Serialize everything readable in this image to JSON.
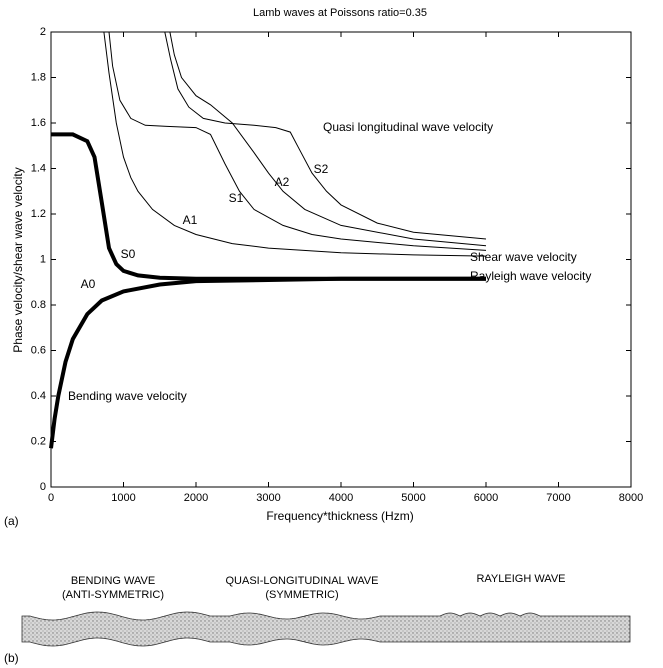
{
  "chart_data": {
    "type": "line",
    "title": "Lamb waves at Poissons ratio=0.35",
    "xlabel": "Frequency*thickness (Hzm)",
    "ylabel": "Phase velocity/shear wave velocity",
    "panel_label": "(a)",
    "xlim": [
      0,
      8000
    ],
    "xticks": [
      0,
      1000,
      2000,
      3000,
      4000,
      5000,
      6000,
      7000,
      8000
    ],
    "ylim": [
      0,
      2
    ],
    "yticks": [
      0,
      0.2,
      0.4,
      0.6,
      0.8,
      1,
      1.2,
      1.4,
      1.6,
      1.8,
      2
    ],
    "series": [
      {
        "name": "A0",
        "color": "#000000",
        "x": [
          0,
          50,
          100,
          200,
          300,
          500,
          700,
          1000,
          1500,
          2000,
          3000,
          4000,
          6000
        ],
        "values": [
          0.17,
          0.3,
          0.4,
          0.55,
          0.65,
          0.76,
          0.82,
          0.86,
          0.89,
          0.905,
          0.91,
          0.915,
          0.915
        ]
      },
      {
        "name": "S0",
        "color": "#000000",
        "x": [
          0,
          300,
          500,
          600,
          700,
          800,
          900,
          1000,
          1200,
          1500,
          2000,
          3000,
          6000
        ],
        "values": [
          1.55,
          1.55,
          1.52,
          1.45,
          1.25,
          1.05,
          0.98,
          0.95,
          0.93,
          0.92,
          0.915,
          0.915,
          0.915
        ]
      },
      {
        "name": "A1",
        "color": "#000000",
        "x": [
          730,
          800,
          900,
          1000,
          1100,
          1200,
          1400,
          1700,
          2000,
          2500,
          3000,
          4000,
          5000,
          6000
        ],
        "values": [
          2,
          1.82,
          1.6,
          1.45,
          1.36,
          1.3,
          1.22,
          1.15,
          1.11,
          1.07,
          1.05,
          1.03,
          1.02,
          1.015
        ]
      },
      {
        "name": "S1",
        "color": "#000000",
        "x": [
          800,
          850,
          950,
          1100,
          1300,
          1600,
          2000,
          2200,
          2400,
          2600,
          2800,
          3200,
          3600,
          4000,
          5000,
          6000
        ],
        "values": [
          2,
          1.85,
          1.7,
          1.62,
          1.59,
          1.585,
          1.58,
          1.55,
          1.42,
          1.3,
          1.22,
          1.15,
          1.11,
          1.09,
          1.06,
          1.04
        ]
      },
      {
        "name": "A2",
        "color": "#000000",
        "x": [
          1640,
          1700,
          1800,
          2000,
          2200,
          2500,
          2800,
          3000,
          3200,
          3500,
          4000,
          5000,
          6000
        ],
        "values": [
          2,
          1.9,
          1.8,
          1.72,
          1.68,
          1.6,
          1.47,
          1.38,
          1.3,
          1.22,
          1.15,
          1.09,
          1.06
        ]
      },
      {
        "name": "S2",
        "color": "#000000",
        "x": [
          1570,
          1650,
          1750,
          1900,
          2100,
          2400,
          2800,
          3100,
          3300,
          3400,
          3600,
          3800,
          4000,
          4500,
          5000,
          6000
        ],
        "values": [
          2,
          1.88,
          1.75,
          1.67,
          1.62,
          1.6,
          1.59,
          1.58,
          1.56,
          1.5,
          1.38,
          1.3,
          1.24,
          1.16,
          1.12,
          1.09
        ]
      }
    ],
    "annotations": [
      "Quasi longitudinal wave velocity",
      "Shear wave velocity",
      "Rayleigh wave velocity",
      "Bending wave velocity"
    ]
  },
  "diagram": {
    "label": "(b)",
    "waves": [
      {
        "name": "BENDING WAVE",
        "note": "(ANTI-SYMMETRIC)"
      },
      {
        "name": "QUASI-LONGITUDINAL WAVE",
        "note": "(SYMMETRIC)"
      },
      {
        "name": "RAYLEIGH WAVE"
      }
    ]
  }
}
